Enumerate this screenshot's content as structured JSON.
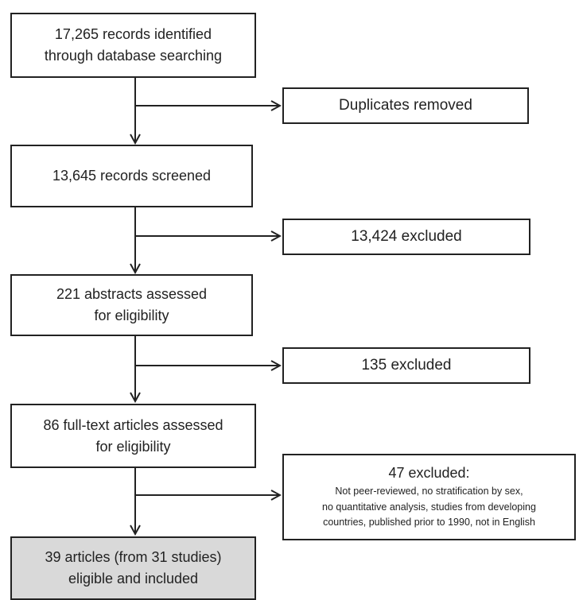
{
  "flow": {
    "identified": "17,265 records identified\nthrough database searching",
    "screened": "13,645 records screened",
    "abstracts": "221 abstracts assessed\nfor eligibility",
    "fulltext": "86 full-text articles assessed\nfor eligibility",
    "included": "39 articles (from 31 studies)\neligible and included"
  },
  "exclusions": {
    "duplicates": "Duplicates removed",
    "screen_excluded": "13,424 excluded",
    "abstract_excluded": "135 excluded",
    "fulltext_excluded_title": "47 excluded:",
    "fulltext_excluded_reasons": "Not peer-reviewed, no stratification by sex,\nno quantitative analysis, studies from developing\ncountries, published prior to 1990, not in English"
  },
  "colors": {
    "border": "#222222",
    "included_fill": "#d9d9d9",
    "background": "#ffffff"
  }
}
